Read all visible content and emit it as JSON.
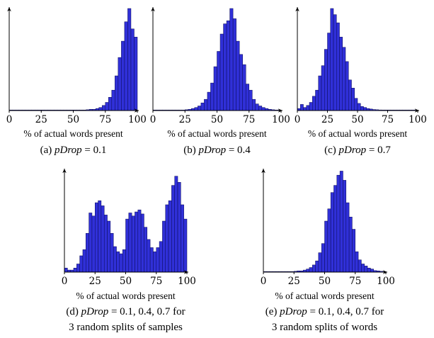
{
  "figure": {
    "panels": [
      {
        "id": "a",
        "caption_lines": [
          "(a) pDrop = 0.1"
        ]
      },
      {
        "id": "b",
        "caption_lines": [
          "(b) pDrop = 0.4"
        ]
      },
      {
        "id": "c",
        "caption_lines": [
          "(c) pDrop = 0.7"
        ]
      },
      {
        "id": "d",
        "caption_lines": [
          "(d) pDrop = 0.1, 0.4, 0.7 for",
          "3 random splits of samples"
        ]
      },
      {
        "id": "e",
        "caption_lines": [
          "(e) pDrop = 0.1, 0.4, 0.7 for",
          "3 random splits of words"
        ]
      }
    ]
  },
  "chart_data": [
    {
      "type": "bar",
      "xlabel": "% of actual words present",
      "xlim": [
        0,
        100
      ],
      "xticks": [
        0,
        25,
        50,
        75,
        100
      ],
      "bin_width": 2.5,
      "bar_color": "#3030d8",
      "values": [
        0.004,
        0.004,
        0.004,
        0.004,
        0.004,
        0.004,
        0.004,
        0.004,
        0.004,
        0.004,
        0.004,
        0.004,
        0.004,
        0.004,
        0.004,
        0.004,
        0.004,
        0.004,
        0.004,
        0.004,
        0.004,
        0.004,
        0.004,
        0.004,
        0.008,
        0.012,
        0.012,
        0.02,
        0.03,
        0.05,
        0.08,
        0.13,
        0.2,
        0.34,
        0.52,
        0.68,
        0.87,
        1.0,
        0.8,
        0.72
      ]
    },
    {
      "type": "bar",
      "xlabel": "% of actual words present",
      "xlim": [
        0,
        100
      ],
      "xticks": [
        0,
        25,
        50,
        75,
        100
      ],
      "bin_width": 2.5,
      "bar_color": "#3030d8",
      "values": [
        0.004,
        0.004,
        0.004,
        0.004,
        0.004,
        0.004,
        0.004,
        0.004,
        0.004,
        0.004,
        0.008,
        0.012,
        0.02,
        0.03,
        0.045,
        0.075,
        0.11,
        0.18,
        0.27,
        0.43,
        0.58,
        0.75,
        0.85,
        0.88,
        1.0,
        0.9,
        0.68,
        0.55,
        0.45,
        0.26,
        0.2,
        0.11,
        0.065,
        0.045,
        0.03,
        0.02,
        0.012,
        0.008,
        0.004,
        0.004
      ]
    },
    {
      "type": "bar",
      "xlabel": "% of actual words present",
      "xlim": [
        0,
        100
      ],
      "xticks": [
        0,
        25,
        50,
        75,
        100
      ],
      "bin_width": 2.5,
      "bar_color": "#3030d8",
      "values": [
        0.02,
        0.06,
        0.03,
        0.05,
        0.08,
        0.14,
        0.2,
        0.34,
        0.44,
        0.6,
        0.76,
        1.0,
        0.94,
        0.86,
        0.72,
        0.62,
        0.48,
        0.3,
        0.22,
        0.12,
        0.07,
        0.04,
        0.03,
        0.02,
        0.015,
        0.01,
        0.008,
        0.006,
        0.004,
        0.004,
        0.004,
        0.004,
        0.004,
        0.004,
        0.004,
        0.004,
        0.004,
        0.004,
        0.004,
        0.004
      ]
    },
    {
      "type": "bar",
      "xlabel": "% of actual words present",
      "xlim": [
        0,
        100
      ],
      "xticks": [
        0,
        25,
        50,
        75,
        100
      ],
      "bin_width": 2.5,
      "bar_color": "#3030d8",
      "values": [
        0.04,
        0.02,
        0.02,
        0.04,
        0.08,
        0.16,
        0.22,
        0.38,
        0.58,
        0.55,
        0.68,
        0.7,
        0.65,
        0.56,
        0.5,
        0.38,
        0.25,
        0.2,
        0.18,
        0.22,
        0.52,
        0.58,
        0.55,
        0.59,
        0.61,
        0.57,
        0.44,
        0.32,
        0.24,
        0.2,
        0.24,
        0.3,
        0.5,
        0.66,
        0.7,
        0.85,
        0.94,
        0.88,
        0.66,
        0.52
      ]
    },
    {
      "type": "bar",
      "xlabel": "% of actual words present",
      "xlim": [
        0,
        100
      ],
      "xticks": [
        0,
        25,
        50,
        75,
        100
      ],
      "bin_width": 2.5,
      "bar_color": "#3030d8",
      "values": [
        0.004,
        0.004,
        0.004,
        0.004,
        0.004,
        0.004,
        0.004,
        0.004,
        0.004,
        0.004,
        0.008,
        0.012,
        0.012,
        0.02,
        0.03,
        0.045,
        0.07,
        0.11,
        0.19,
        0.28,
        0.5,
        0.62,
        0.78,
        0.85,
        0.95,
        0.99,
        0.9,
        0.68,
        0.54,
        0.42,
        0.2,
        0.12,
        0.08,
        0.06,
        0.04,
        0.03,
        0.015,
        0.012,
        0.008,
        0.004
      ]
    }
  ]
}
